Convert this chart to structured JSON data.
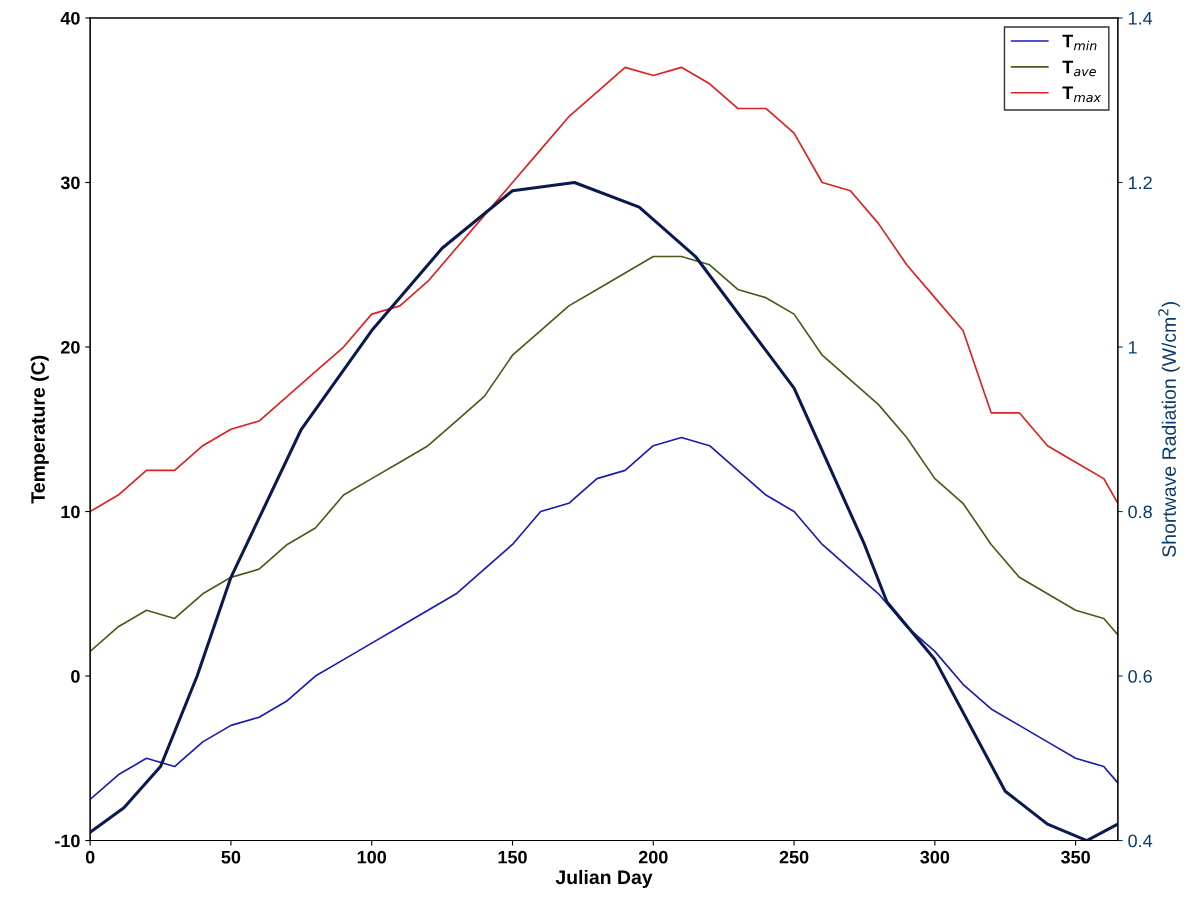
{
  "chart_data": {
    "type": "line",
    "xlabel": "Julian Day",
    "ylabel": "Temperature (C)",
    "y2label": "Shortwave Radiation (W/cm$^{2}$)",
    "x": [
      0,
      10,
      20,
      30,
      40,
      50,
      60,
      70,
      80,
      90,
      100,
      110,
      120,
      130,
      140,
      150,
      160,
      170,
      180,
      190,
      200,
      210,
      220,
      230,
      240,
      250,
      260,
      270,
      280,
      290,
      300,
      310,
      320,
      330,
      340,
      350,
      360,
      365
    ],
    "series": [
      {
        "name": "T$_{min}$",
        "color": "#1a1ab4",
        "values": [
          -7.5,
          -6,
          -5,
          -5.5,
          -4,
          -3,
          -2.5,
          -1.5,
          0,
          1,
          2,
          3,
          4,
          5,
          6.5,
          8,
          10,
          10.5,
          12,
          12.5,
          14,
          14.5,
          14,
          12.5,
          11,
          10,
          8,
          6.5,
          5,
          3,
          1.5,
          -0.5,
          -2,
          -3,
          -4,
          -5,
          -5.5,
          -6.5
        ]
      },
      {
        "name": "T$_{ave}$",
        "color": "#4a5a1a",
        "values": [
          1.5,
          3,
          4,
          3.5,
          5,
          6,
          6.5,
          8,
          9,
          11,
          12,
          13,
          14,
          15.5,
          17,
          19.5,
          21,
          22.5,
          23.5,
          24.5,
          25.5,
          25.5,
          25,
          23.5,
          23,
          22,
          19.5,
          18,
          16.5,
          14.5,
          12,
          10.5,
          8,
          6,
          5,
          4,
          3.5,
          2.5
        ]
      },
      {
        "name": "T$_{max}$",
        "color": "#e02020",
        "values": [
          10,
          11,
          12.5,
          12.5,
          14,
          15,
          15.5,
          17,
          18.5,
          20,
          22,
          22.5,
          24,
          26,
          28,
          30,
          32,
          34,
          35.5,
          37,
          36.5,
          37,
          36,
          34.5,
          34.5,
          33,
          30,
          29.5,
          27.5,
          25,
          23,
          21,
          16,
          16,
          14,
          13,
          12,
          10.5
        ]
      },
      {
        "color": "#0a1a50",
        "axis": "y2",
        "x": [
          0,
          12,
          25,
          38,
          50,
          75,
          100,
          125,
          150,
          172,
          195,
          215,
          250,
          275,
          283,
          300,
          325,
          340,
          354,
          365
        ],
        "values": [
          0.41,
          0.44,
          0.49,
          0.6,
          0.72,
          0.9,
          1.02,
          1.12,
          1.19,
          1.2,
          1.17,
          1.11,
          0.95,
          0.76,
          0.69,
          0.62,
          0.46,
          0.42,
          0.4,
          0.42
        ]
      }
    ],
    "xlim": [
      0,
      365
    ],
    "xticks": [
      0,
      50,
      100,
      150,
      200,
      250,
      300,
      350
    ],
    "ylim": [
      -10,
      40
    ],
    "yticks": [
      -10,
      0,
      10,
      20,
      30,
      40
    ],
    "y2lim": [
      0.4,
      1.4
    ],
    "y2ticks": [
      0.4,
      0.6,
      0.8,
      1,
      1.2,
      1.4
    ],
    "legend": "top right",
    "grid": false
  }
}
